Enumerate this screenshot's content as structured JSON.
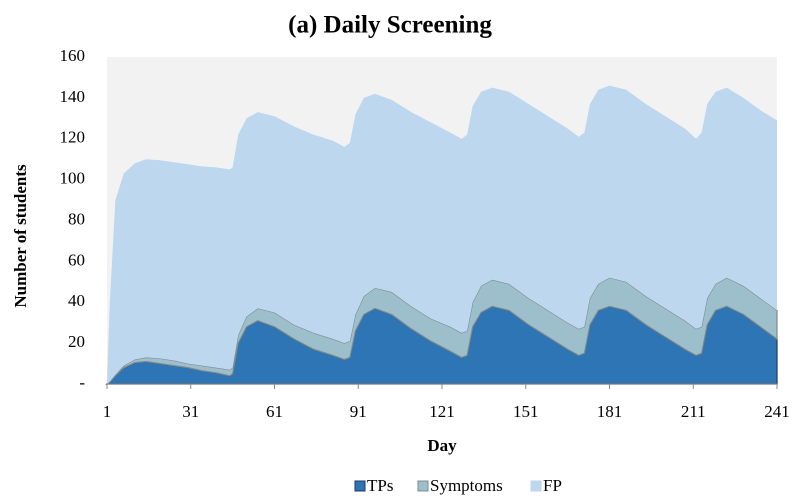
{
  "chart_data": {
    "type": "stacked_area",
    "title": "(a) Daily Screening",
    "x_label": "Day",
    "y_label": "Number of students",
    "x": [
      1,
      2,
      4,
      7,
      11,
      15,
      20,
      25,
      30,
      35,
      40,
      45,
      46,
      48,
      51,
      55,
      61,
      68,
      75,
      82,
      86,
      88,
      90,
      93,
      97,
      103,
      110,
      117,
      124,
      128,
      130,
      132,
      135,
      139,
      145,
      152,
      159,
      166,
      170,
      172,
      174,
      177,
      181,
      187,
      194,
      201,
      208,
      212,
      214,
      216,
      219,
      223,
      229,
      235,
      241
    ],
    "series": [
      {
        "name": "TPs",
        "color": "#2e75b6",
        "values": [
          0,
          1,
          4,
          8,
          10.5,
          11,
          10,
          9,
          8,
          6.5,
          5.5,
          4,
          5,
          20,
          28,
          31,
          28,
          22,
          17,
          14,
          12,
          13,
          26,
          34,
          37,
          34,
          27,
          21,
          16,
          13,
          14,
          28,
          35,
          38,
          36,
          29,
          23,
          17,
          14,
          15,
          29,
          36,
          38,
          36,
          29,
          23,
          17,
          14,
          15,
          29,
          36,
          38,
          34,
          28,
          22
        ]
      },
      {
        "name": "Symptoms",
        "color": "#9dbfcc",
        "values": [
          0,
          0.2,
          0.5,
          1,
          1.5,
          2,
          2.5,
          2.5,
          2,
          2.5,
          2.5,
          3,
          3,
          4,
          5,
          6,
          7,
          7,
          8,
          8,
          8,
          8,
          8,
          9,
          10,
          11,
          11,
          11,
          12,
          12,
          12,
          12,
          13,
          13,
          13,
          13,
          13,
          13,
          13,
          13,
          13,
          13,
          14,
          14,
          14,
          14,
          14,
          13,
          13,
          13,
          13,
          14,
          14,
          14,
          14
        ]
      },
      {
        "name": "FP",
        "color": "#bdd7ee",
        "values": [
          0,
          38.8,
          85.5,
          94,
          96,
          97,
          97,
          97,
          97.5,
          97.5,
          98,
          98,
          98,
          98,
          97,
          96,
          96,
          97,
          97,
          97,
          96,
          97,
          98,
          97,
          95,
          94,
          95,
          96,
          95,
          95,
          96,
          96,
          95,
          94,
          94,
          95,
          95,
          95,
          94,
          95,
          95,
          95,
          94,
          94,
          94,
          94,
          94,
          93,
          95,
          95,
          94,
          93,
          92,
          92,
          93
        ]
      }
    ],
    "xlim": [
      1,
      241
    ],
    "xticks": [
      1,
      31,
      61,
      91,
      121,
      151,
      181,
      211,
      241
    ],
    "ylim": [
      0,
      160
    ],
    "yticks": [
      {
        "value": 0,
        "label": "-"
      },
      20,
      40,
      60,
      80,
      100,
      120,
      140,
      160
    ],
    "grid": false
  }
}
